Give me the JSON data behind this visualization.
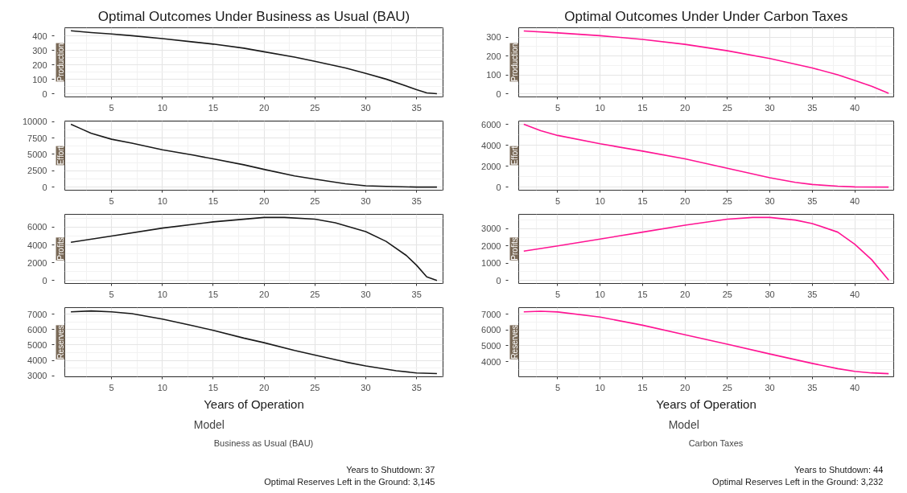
{
  "chart_data": [
    {
      "type": "line",
      "title": "Optimal Outcomes Under Business as Usual (BAU)",
      "ylabel": "Production",
      "xlim": [
        0.4,
        37.6
      ],
      "xticks": [
        5,
        10,
        15,
        20,
        25,
        30,
        35
      ],
      "ylim": [
        -20,
        458
      ],
      "yticks": [
        0,
        100,
        200,
        300,
        400
      ],
      "grid": true,
      "x": [
        1,
        3,
        5,
        7,
        10,
        13,
        15,
        18,
        20,
        23,
        25,
        28,
        30,
        32,
        34,
        35,
        36,
        37
      ],
      "series": [
        {
          "color": "#1a1a1a",
          "values": [
            437,
            425,
            415,
            403,
            383,
            360,
            345,
            317,
            292,
            255,
            226,
            180,
            143,
            103,
            55,
            30,
            8,
            2
          ]
        }
      ]
    },
    {
      "type": "line",
      "ylabel": "Effort",
      "xlim": [
        0.4,
        37.6
      ],
      "xticks": [
        5,
        10,
        15,
        20,
        25,
        30,
        35
      ],
      "ylim": [
        -480,
        10080
      ],
      "yticks": [
        0,
        2500,
        5000,
        7500,
        10000
      ],
      "grid": true,
      "x": [
        1,
        2,
        3,
        5,
        7,
        10,
        13,
        15,
        18,
        20,
        23,
        25,
        28,
        30,
        32,
        35,
        37
      ],
      "series": [
        {
          "color": "#1a1a1a",
          "values": [
            9600,
            8900,
            8200,
            7300,
            6700,
            5700,
            4900,
            4300,
            3400,
            2700,
            1700,
            1200,
            500,
            200,
            100,
            0,
            0
          ]
        }
      ]
    },
    {
      "type": "line",
      "ylabel": "Profits",
      "xlim": [
        0.4,
        37.6
      ],
      "xticks": [
        5,
        10,
        15,
        20,
        25,
        30,
        35
      ],
      "ylim": [
        -350,
        7450
      ],
      "yticks": [
        0,
        2000,
        4000,
        6000
      ],
      "grid": true,
      "x": [
        1,
        5,
        10,
        15,
        20,
        22,
        25,
        27,
        30,
        32,
        34,
        35,
        36,
        37
      ],
      "series": [
        {
          "color": "#1a1a1a",
          "values": [
            4300,
            5000,
            5900,
            6600,
            7100,
            7100,
            6900,
            6500,
            5500,
            4400,
            2800,
            1700,
            400,
            0
          ]
        }
      ]
    },
    {
      "type": "line",
      "ylabel": "Reserves",
      "xlabel": "Years of Operation",
      "xlim": [
        0.4,
        37.6
      ],
      "xticks": [
        5,
        10,
        15,
        20,
        25,
        30,
        35
      ],
      "ylim": [
        2940,
        7425
      ],
      "yticks": [
        3000,
        4000,
        5000,
        6000,
        7000
      ],
      "grid": true,
      "legend": "bottom",
      "legend_title": "Model",
      "x": [
        1,
        3,
        5,
        7,
        10,
        13,
        15,
        18,
        20,
        23,
        25,
        28,
        30,
        33,
        35,
        37
      ],
      "series": [
        {
          "name": "Business as Usual (BAU)",
          "color": "#1a1a1a",
          "values": [
            7150,
            7210,
            7150,
            7030,
            6680,
            6250,
            5950,
            5450,
            5150,
            4650,
            4350,
            3900,
            3640,
            3330,
            3190,
            3145
          ]
        }
      ],
      "annotations": [
        "Years to Shutdown: 37",
        "Optimal Reserves Left in the Ground: 3,145"
      ]
    },
    {
      "type": "line",
      "title": "Optimal Outcomes Under Under Carbon Taxes",
      "ylabel": "Production",
      "xlim": [
        0.4,
        44.6
      ],
      "xticks": [
        5,
        10,
        15,
        20,
        25,
        30,
        35,
        40
      ],
      "ylim": [
        -17,
        350
      ],
      "yticks": [
        0,
        100,
        200,
        300
      ],
      "grid": true,
      "x": [
        1,
        5,
        10,
        15,
        20,
        25,
        30,
        35,
        38,
        40,
        42,
        44
      ],
      "series": [
        {
          "color": "#ff1493",
          "values": [
            333,
            323,
            308,
            288,
            262,
            228,
            187,
            137,
            100,
            70,
            40,
            2
          ]
        }
      ]
    },
    {
      "type": "line",
      "ylabel": "Effort",
      "xlim": [
        0.4,
        44.6
      ],
      "xticks": [
        5,
        10,
        15,
        20,
        25,
        30,
        35,
        40
      ],
      "ylim": [
        -300,
        6330
      ],
      "yticks": [
        0,
        2000,
        4000,
        6000
      ],
      "grid": true,
      "x": [
        1,
        3,
        5,
        10,
        15,
        20,
        25,
        30,
        33,
        35,
        38,
        40,
        44
      ],
      "series": [
        {
          "color": "#ff1493",
          "values": [
            6030,
            5400,
            4950,
            4150,
            3450,
            2700,
            1800,
            900,
            450,
            250,
            80,
            20,
            0
          ]
        }
      ]
    },
    {
      "type": "line",
      "ylabel": "Profits",
      "xlim": [
        0.4,
        44.6
      ],
      "xticks": [
        5,
        10,
        15,
        20,
        25,
        30,
        35,
        40
      ],
      "ylim": [
        -183,
        3833
      ],
      "yticks": [
        0,
        1000,
        2000,
        3000
      ],
      "grid": true,
      "x": [
        1,
        5,
        10,
        15,
        20,
        25,
        28,
        30,
        33,
        35,
        38,
        40,
        42,
        44
      ],
      "series": [
        {
          "color": "#ff1493",
          "values": [
            1700,
            2000,
            2400,
            2800,
            3200,
            3550,
            3650,
            3650,
            3500,
            3300,
            2800,
            2100,
            1200,
            20
          ]
        }
      ]
    },
    {
      "type": "line",
      "ylabel": "Reserves",
      "xlabel": "Years of Operation",
      "xlim": [
        0.4,
        44.6
      ],
      "xticks": [
        5,
        10,
        15,
        20,
        25,
        30,
        35,
        40
      ],
      "ylim": [
        3034,
        7416
      ],
      "yticks": [
        4000,
        5000,
        6000,
        7000
      ],
      "grid": true,
      "legend": "bottom",
      "legend_title": "Model",
      "x": [
        1,
        3,
        5,
        10,
        15,
        20,
        25,
        30,
        35,
        38,
        40,
        42,
        44
      ],
      "series": [
        {
          "name": "Carbon Taxes",
          "color": "#ff1493",
          "values": [
            7150,
            7190,
            7140,
            6820,
            6300,
            5700,
            5100,
            4480,
            3880,
            3550,
            3380,
            3280,
            3232
          ]
        }
      ],
      "annotations": [
        "Years to Shutdown: 44",
        "Optimal Reserves Left in the Ground: 3,232"
      ]
    }
  ]
}
